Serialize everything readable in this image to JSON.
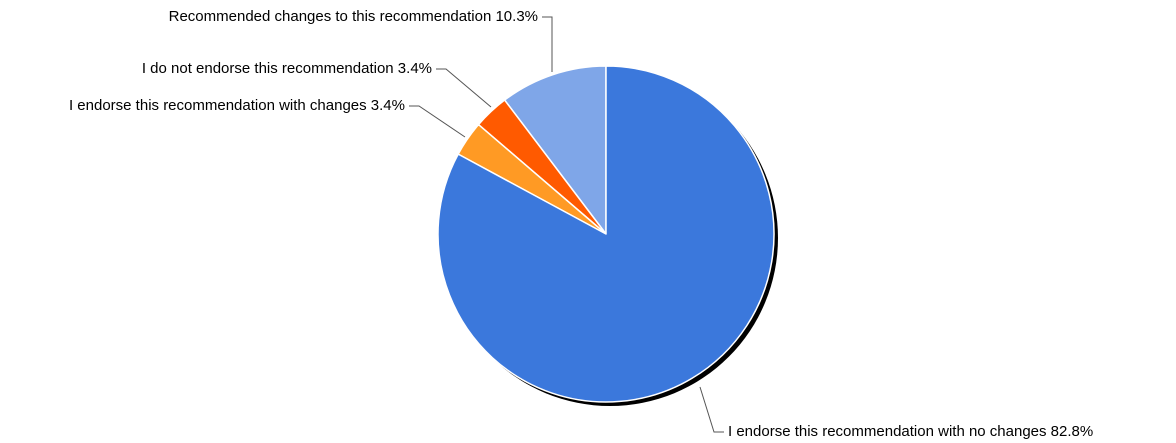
{
  "chart_data": {
    "type": "pie",
    "title": "",
    "slices": [
      {
        "label": "Recommended changes to this recommendation",
        "value": 10.3,
        "display": "Recommended changes to this recommendation 10.3%",
        "color": "#7fa6e8"
      },
      {
        "label": "I do not endorse this recommendation",
        "value": 3.4,
        "display": "I do not endorse this recommendation 3.4%",
        "color": "#ff5a00"
      },
      {
        "label": "I endorse this recommendation with changes",
        "value": 3.4,
        "display": "I endorse this recommendation with changes 3.4%",
        "color": "#ff9a24"
      },
      {
        "label": "I endorse this recommendation with no changes",
        "value": 82.8,
        "display": "I endorse this recommendation with no changes 82.8%",
        "color": "#3b78dc"
      }
    ],
    "start_angle_deg": 0,
    "direction": "counterclockwise",
    "labels": "outside-with-leader-lines",
    "legend": "none"
  }
}
